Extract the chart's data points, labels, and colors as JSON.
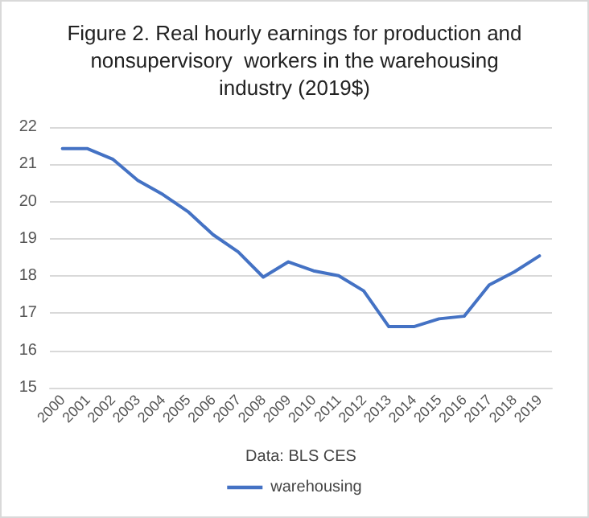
{
  "chart_data": {
    "type": "line",
    "title": "Figure 2. Real hourly earnings for production and\nnonsupervisory  workers in the warehousing\nindustry (2019$)",
    "xlabel": "Data: BLS CES",
    "categories": [
      "2000",
      "2001",
      "2002",
      "2003",
      "2004",
      "2005",
      "2006",
      "2007",
      "2008",
      "2009",
      "2010",
      "2011",
      "2012",
      "2013",
      "2014",
      "2015",
      "2016",
      "2017",
      "2018",
      "2019"
    ],
    "series": [
      {
        "name": "warehousing",
        "color": "#4472c4",
        "values": [
          21.42,
          21.42,
          21.14,
          20.57,
          20.19,
          19.73,
          19.11,
          18.65,
          17.97,
          18.38,
          18.14,
          18.01,
          17.6,
          16.64,
          16.64,
          16.85,
          16.92,
          17.76,
          18.11,
          18.54
        ]
      }
    ],
    "ylim": [
      15,
      22
    ],
    "yticks": [
      15,
      16,
      17,
      18,
      19,
      20,
      21,
      22
    ],
    "grid": "y",
    "legend": "bottom",
    "marker": "none",
    "line_style": "solid"
  }
}
